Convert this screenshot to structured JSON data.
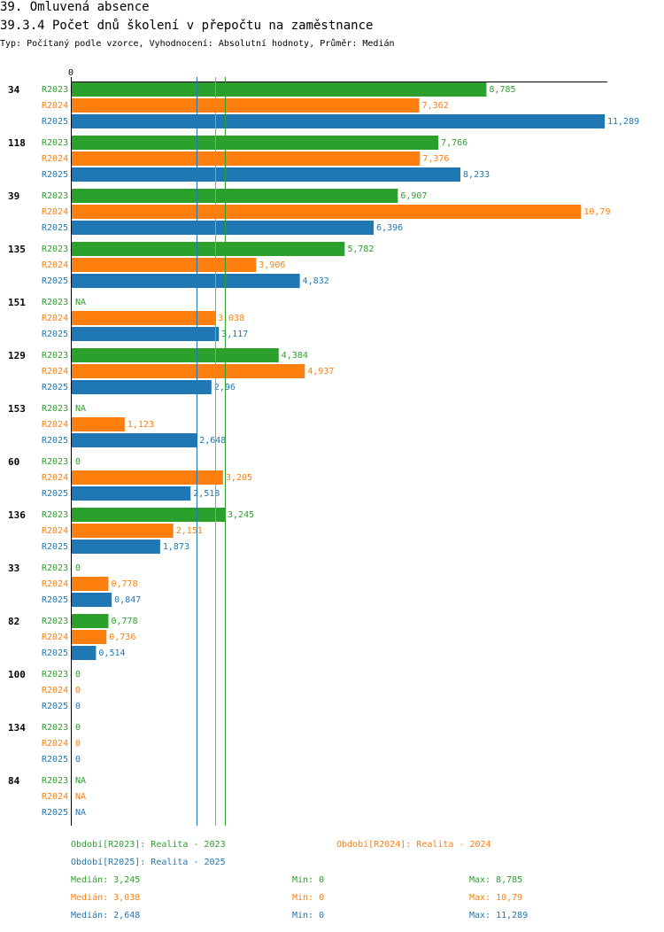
{
  "header": {
    "title": "39. Omluvená absence",
    "subtitle": "39.3.4 Počet dnů školení v přepočtu na zaměstnance",
    "type_line": "Typ: Počítaný podle vzorce, Vyhodnocení: Absolutní hodnoty, Průměr: Medián"
  },
  "colors": {
    "R2023": "#2ca02c",
    "R2024": "#ff7f0e",
    "R2025": "#1f77b4"
  },
  "chart_data": {
    "type": "bar",
    "orientation": "horizontal",
    "axis_zero_label": "0",
    "xlim": [
      0,
      11.289
    ],
    "series_names": [
      "R2023",
      "R2024",
      "R2025"
    ],
    "groups": [
      {
        "id": "34",
        "values": [
          8.785,
          7.362,
          11.289
        ],
        "labels": [
          "8,785",
          "7,362",
          "11,289"
        ]
      },
      {
        "id": "118",
        "values": [
          7.766,
          7.376,
          8.233
        ],
        "labels": [
          "7,766",
          "7,376",
          "8,233"
        ]
      },
      {
        "id": "39",
        "values": [
          6.907,
          10.79,
          6.396
        ],
        "labels": [
          "6,907",
          "10,79",
          "6,396"
        ]
      },
      {
        "id": "135",
        "values": [
          5.782,
          3.906,
          4.832
        ],
        "labels": [
          "5,782",
          "3,906",
          "4,832"
        ]
      },
      {
        "id": "151",
        "values": [
          null,
          3.038,
          3.117
        ],
        "labels": [
          "NA",
          "3,038",
          "3,117"
        ]
      },
      {
        "id": "129",
        "values": [
          4.384,
          4.937,
          2.96
        ],
        "labels": [
          "4,384",
          "4,937",
          "2,96"
        ]
      },
      {
        "id": "153",
        "values": [
          null,
          1.123,
          2.648
        ],
        "labels": [
          "NA",
          "1,123",
          "2,648"
        ]
      },
      {
        "id": "60",
        "values": [
          0,
          3.205,
          2.518
        ],
        "labels": [
          "0",
          "3,205",
          "2,518"
        ]
      },
      {
        "id": "136",
        "values": [
          3.245,
          2.151,
          1.873
        ],
        "labels": [
          "3,245",
          "2,151",
          "1,873"
        ]
      },
      {
        "id": "33",
        "values": [
          0,
          0.778,
          0.847
        ],
        "labels": [
          "0",
          "0,778",
          "0,847"
        ]
      },
      {
        "id": "82",
        "values": [
          0.778,
          0.736,
          0.514
        ],
        "labels": [
          "0,778",
          "0,736",
          "0,514"
        ]
      },
      {
        "id": "100",
        "values": [
          0,
          0,
          0
        ],
        "labels": [
          "0",
          "0",
          "0"
        ]
      },
      {
        "id": "134",
        "values": [
          0,
          0,
          0
        ],
        "labels": [
          "0",
          "0",
          "0"
        ]
      },
      {
        "id": "84",
        "values": [
          null,
          null,
          null
        ],
        "labels": [
          "NA",
          "NA",
          "NA"
        ]
      }
    ],
    "median_lines": [
      {
        "series": "R2025",
        "value": 2.648
      },
      {
        "series": "R2024",
        "value": 3.038
      },
      {
        "series": "R2023",
        "value": 3.245
      }
    ]
  },
  "legend": {
    "r2023": "Období[R2023]: Realita - 2023",
    "r2024": "Období[R2024]: Realita - 2024",
    "r2025": "Období[R2025]: Realita - 2025"
  },
  "stats": {
    "r2023": {
      "median": "Medián: 3,245",
      "min": "Min: 0",
      "max": "Max: 8,785"
    },
    "r2024": {
      "median": "Medián: 3,038",
      "min": "Min: 0",
      "max": "Max: 10,79"
    },
    "r2025": {
      "median": "Medián: 2,648",
      "min": "Min: 0",
      "max": "Max: 11,289"
    }
  }
}
